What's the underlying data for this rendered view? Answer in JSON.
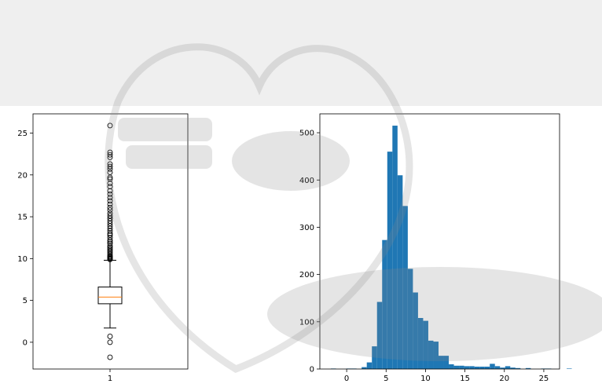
{
  "chart_data": [
    {
      "type": "boxplot",
      "categories": [
        "1"
      ],
      "stats": {
        "whislo": 1.7,
        "q1": 4.6,
        "med": 5.4,
        "q3": 6.6,
        "whishi": 9.8
      },
      "outliers": [
        -1.8,
        0.0,
        0.7,
        9.9,
        10.0,
        10.1,
        10.2,
        10.3,
        10.5,
        10.7,
        10.9,
        11.1,
        11.3,
        11.5,
        11.8,
        12.0,
        12.2,
        12.5,
        12.8,
        13.0,
        13.3,
        13.6,
        13.9,
        14.2,
        14.5,
        14.8,
        15.1,
        15.4,
        15.8,
        16.1,
        16.5,
        16.9,
        17.3,
        17.7,
        18.1,
        18.6,
        19.0,
        19.5,
        19.7,
        20.3,
        20.7,
        21.0,
        21.3,
        22.1,
        22.4,
        22.7,
        25.9
      ],
      "ylim": [
        -3.2,
        27.3
      ],
      "yticks": [
        0,
        5,
        10,
        15,
        20,
        25
      ],
      "colors": {
        "box": "#000000",
        "median": "#ff7f0e"
      }
    },
    {
      "type": "histogram",
      "bin_start": -2.0,
      "bin_width": 0.65,
      "counts": [
        1,
        0,
        0,
        1,
        1,
        0,
        4,
        14,
        48,
        142,
        273,
        460,
        515,
        410,
        345,
        212,
        162,
        108,
        102,
        60,
        58,
        28,
        28,
        10,
        7,
        7,
        6,
        6,
        5,
        5,
        5,
        11,
        6,
        3,
        6,
        3,
        2,
        0,
        2,
        0,
        0,
        1,
        1,
        0,
        0,
        0,
        1
      ],
      "xlim": [
        -3.4,
        27.0
      ],
      "ylim": [
        0,
        540
      ],
      "xticks": [
        0,
        5,
        10,
        15,
        20,
        25
      ],
      "yticks": [
        0,
        100,
        200,
        300,
        400,
        500
      ],
      "colors": {
        "bar": "#1f77b4"
      }
    }
  ]
}
